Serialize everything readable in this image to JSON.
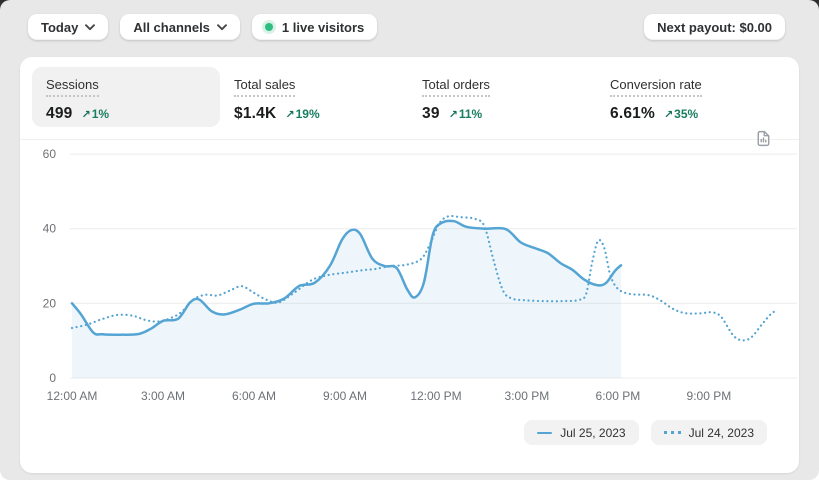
{
  "colors": {
    "accent_blue": "#54A4D4",
    "area_fill_blue": "rgba(84,164,212,0.10)",
    "success_green": "#177E5F",
    "live_dot_green": "#2FBE81",
    "grid_line": "#ECECEC",
    "axis_text": "#6D7175",
    "page_background": "#E8E8E8",
    "card_background": "#FFFFFF",
    "selected_tab_background": "#F1F1F1"
  },
  "icons": {
    "trend_up_arrow": "↗",
    "chevron_down": "⌄",
    "live_dot": "circle",
    "report_document": "document-with-chart"
  },
  "topbar": {
    "date_range_label": "Today",
    "channel_label": "All channels",
    "live_visitors_label": "1 live visitors",
    "next_payout_label": "Next payout: $0.00"
  },
  "metrics": [
    {
      "label": "Sessions",
      "value": "499",
      "change": "1%",
      "direction": "up",
      "selected": true
    },
    {
      "label": "Total sales",
      "value": "$1.4K",
      "change": "19%",
      "direction": "up",
      "selected": false
    },
    {
      "label": "Total orders",
      "value": "39",
      "change": "11%",
      "direction": "up",
      "selected": false
    },
    {
      "label": "Conversion rate",
      "value": "6.61%",
      "change": "35%",
      "direction": "up",
      "selected": false
    }
  ],
  "chart_data": {
    "type": "line",
    "title": "Sessions",
    "grid": true,
    "legend_position": "bottom-right",
    "y_axis": {
      "ticks": [
        0,
        20,
        40,
        60
      ],
      "range": [
        0,
        64
      ]
    },
    "x_axis": {
      "unit": "hour-of-day",
      "range_hours": [
        0,
        24
      ],
      "tick_hours": [
        0,
        3,
        6,
        9,
        12,
        15,
        18,
        21
      ],
      "tick_labels": [
        "12:00 AM",
        "3:00 AM",
        "6:00 AM",
        "9:00 AM",
        "12:00 PM",
        "3:00 PM",
        "6:00 PM",
        "9:00 PM"
      ]
    },
    "series": [
      {
        "name": "Jul 25, 2023",
        "style": "solid",
        "color": "#54A4D4",
        "fill": true,
        "points": [
          [
            0,
            20
          ],
          [
            0.3,
            17
          ],
          [
            0.7,
            12.2
          ],
          [
            1,
            11.7
          ],
          [
            1.6,
            11.6
          ],
          [
            2.2,
            11.8
          ],
          [
            2.6,
            13.2
          ],
          [
            3,
            15.3
          ],
          [
            3.5,
            15.9
          ],
          [
            3.9,
            20.3
          ],
          [
            4.2,
            21
          ],
          [
            4.6,
            17.9
          ],
          [
            5,
            17
          ],
          [
            5.5,
            18.2
          ],
          [
            6,
            19.9
          ],
          [
            6.5,
            20
          ],
          [
            7,
            21.3
          ],
          [
            7.5,
            24.7
          ],
          [
            8,
            25.5
          ],
          [
            8.5,
            30
          ],
          [
            8.9,
            37
          ],
          [
            9.2,
            39.6
          ],
          [
            9.5,
            38.6
          ],
          [
            9.9,
            32
          ],
          [
            10.3,
            30
          ],
          [
            10.7,
            29.5
          ],
          [
            11.05,
            23.8
          ],
          [
            11.3,
            21.6
          ],
          [
            11.6,
            25.5
          ],
          [
            11.9,
            38.5
          ],
          [
            12.2,
            41.6
          ],
          [
            12.6,
            42
          ],
          [
            13,
            40.5
          ],
          [
            13.6,
            40
          ],
          [
            14.3,
            39.9
          ],
          [
            14.8,
            36.3
          ],
          [
            15.3,
            34.7
          ],
          [
            15.7,
            33.4
          ],
          [
            16.1,
            30.8
          ],
          [
            16.5,
            29
          ],
          [
            16.9,
            26.3
          ],
          [
            17.3,
            24.9
          ],
          [
            17.6,
            25.4
          ],
          [
            17.9,
            28.7
          ],
          [
            18.1,
            30.2
          ]
        ]
      },
      {
        "name": "Jul 24, 2023",
        "style": "dotted",
        "color": "#54A4D4",
        "fill": false,
        "points": [
          [
            0,
            13.4
          ],
          [
            0.5,
            14.3
          ],
          [
            1,
            15.8
          ],
          [
            1.5,
            16.9
          ],
          [
            2,
            16.7
          ],
          [
            2.4,
            15.6
          ],
          [
            2.8,
            15.1
          ],
          [
            3.2,
            15.9
          ],
          [
            3.6,
            17.6
          ],
          [
            4,
            21
          ],
          [
            4.4,
            22.3
          ],
          [
            4.8,
            22.1
          ],
          [
            5.2,
            23.4
          ],
          [
            5.6,
            24.6
          ],
          [
            6,
            22.8
          ],
          [
            6.4,
            21
          ],
          [
            6.8,
            20.2
          ],
          [
            7.3,
            22.7
          ],
          [
            7.9,
            26.2
          ],
          [
            8.4,
            27.5
          ],
          [
            9,
            28.2
          ],
          [
            9.6,
            28.9
          ],
          [
            10,
            29.2
          ],
          [
            10.5,
            30
          ],
          [
            11,
            30.3
          ],
          [
            11.5,
            31.8
          ],
          [
            11.8,
            35.8
          ],
          [
            12.1,
            41.3
          ],
          [
            12.4,
            43.3
          ],
          [
            12.8,
            43.1
          ],
          [
            13.3,
            42.6
          ],
          [
            13.6,
            40.6
          ],
          [
            13.9,
            31.5
          ],
          [
            14.2,
            23.6
          ],
          [
            14.5,
            21.3
          ],
          [
            15,
            20.8
          ],
          [
            15.6,
            20.6
          ],
          [
            16.2,
            20.6
          ],
          [
            16.7,
            20.9
          ],
          [
            16.95,
            22.5
          ],
          [
            17.15,
            31
          ],
          [
            17.35,
            36.8
          ],
          [
            17.55,
            34.8
          ],
          [
            17.75,
            27.5
          ],
          [
            18,
            23.9
          ],
          [
            18.4,
            22.5
          ],
          [
            19,
            22.2
          ],
          [
            19.4,
            20.8
          ],
          [
            19.8,
            18.6
          ],
          [
            20.2,
            17.4
          ],
          [
            20.7,
            17.3
          ],
          [
            21.1,
            17.6
          ],
          [
            21.4,
            16.4
          ],
          [
            21.8,
            11.4
          ],
          [
            22.1,
            10.1
          ],
          [
            22.4,
            10.9
          ],
          [
            22.75,
            14.4
          ],
          [
            23.05,
            17.2
          ],
          [
            23.2,
            17.9
          ]
        ]
      }
    ]
  }
}
